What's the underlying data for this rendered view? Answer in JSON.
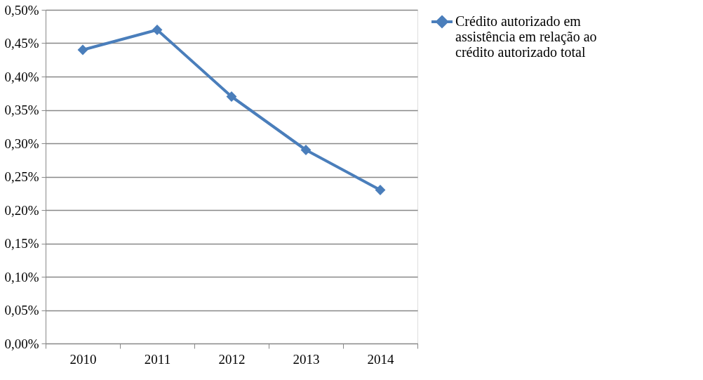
{
  "chart_data": {
    "type": "line",
    "categories": [
      "2010",
      "2011",
      "2012",
      "2013",
      "2014"
    ],
    "series": [
      {
        "name": "Crédito autorizado em assistência em relação ao crédito autorizado total",
        "color": "#4a7ebb",
        "values": [
          0.44,
          0.47,
          0.37,
          0.29,
          0.23
        ]
      }
    ],
    "ylim": [
      0,
      0.5
    ],
    "yticks": [
      {
        "value": 0,
        "label": "0,00%"
      },
      {
        "value": 0.05,
        "label": "0,05%"
      },
      {
        "value": 0.1,
        "label": "0,10%"
      },
      {
        "value": 0.15,
        "label": "0,15%"
      },
      {
        "value": 0.2,
        "label": "0,20%"
      },
      {
        "value": 0.25,
        "label": "0,25%"
      },
      {
        "value": 0.3,
        "label": "0,30%"
      },
      {
        "value": 0.35,
        "label": "0,35%"
      },
      {
        "value": 0.4,
        "label": "0,40%"
      },
      {
        "value": 0.45,
        "label": "0,45%"
      },
      {
        "value": 0.5,
        "label": "0,50%"
      }
    ],
    "grid": "y",
    "legend": "right",
    "marker": "diamond",
    "line_style": "solid"
  }
}
